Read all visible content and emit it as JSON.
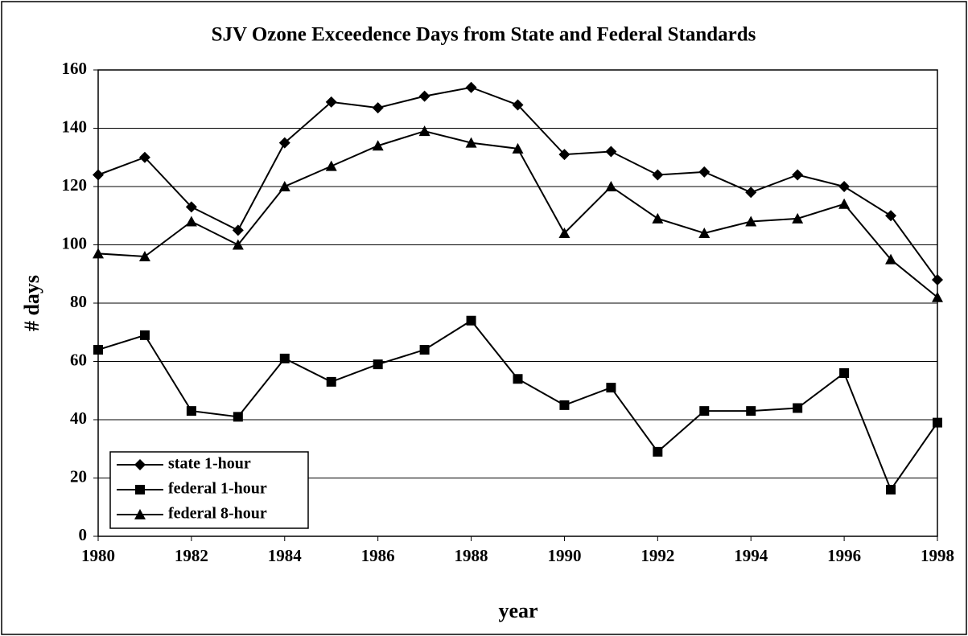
{
  "chart_data": {
    "type": "line",
    "title": "SJV Ozone Exceedence Days from State and Federal Standards",
    "xlabel": "year",
    "ylabel": "# days",
    "x": [
      1980,
      1981,
      1982,
      1983,
      1984,
      1985,
      1986,
      1987,
      1988,
      1989,
      1990,
      1991,
      1992,
      1993,
      1994,
      1995,
      1996,
      1997,
      1998
    ],
    "series": [
      {
        "name": "state 1-hour",
        "color": "#000000",
        "marker": "diamond",
        "values": [
          124,
          130,
          113,
          105,
          135,
          149,
          147,
          151,
          154,
          148,
          131,
          132,
          124,
          125,
          118,
          124,
          120,
          110,
          88
        ]
      },
      {
        "name": "federal 1-hour",
        "color": "#000000",
        "marker": "square",
        "values": [
          64,
          69,
          43,
          41,
          61,
          53,
          59,
          64,
          74,
          54,
          45,
          51,
          29,
          43,
          43,
          44,
          56,
          16,
          39
        ]
      },
      {
        "name": "federal 8-hour",
        "color": "#000000",
        "marker": "triangle",
        "values": [
          97,
          96,
          108,
          100,
          120,
          127,
          134,
          139,
          135,
          133,
          104,
          120,
          109,
          104,
          108,
          109,
          114,
          95,
          82
        ]
      }
    ],
    "xlim": [
      1980,
      1998
    ],
    "xticks": [
      1980,
      1982,
      1984,
      1986,
      1988,
      1990,
      1992,
      1994,
      1996,
      1998
    ],
    "ylim": [
      0,
      160
    ],
    "yticks": [
      0,
      20,
      40,
      60,
      80,
      100,
      120,
      140,
      160
    ],
    "grid": true,
    "legend": "lower left"
  }
}
